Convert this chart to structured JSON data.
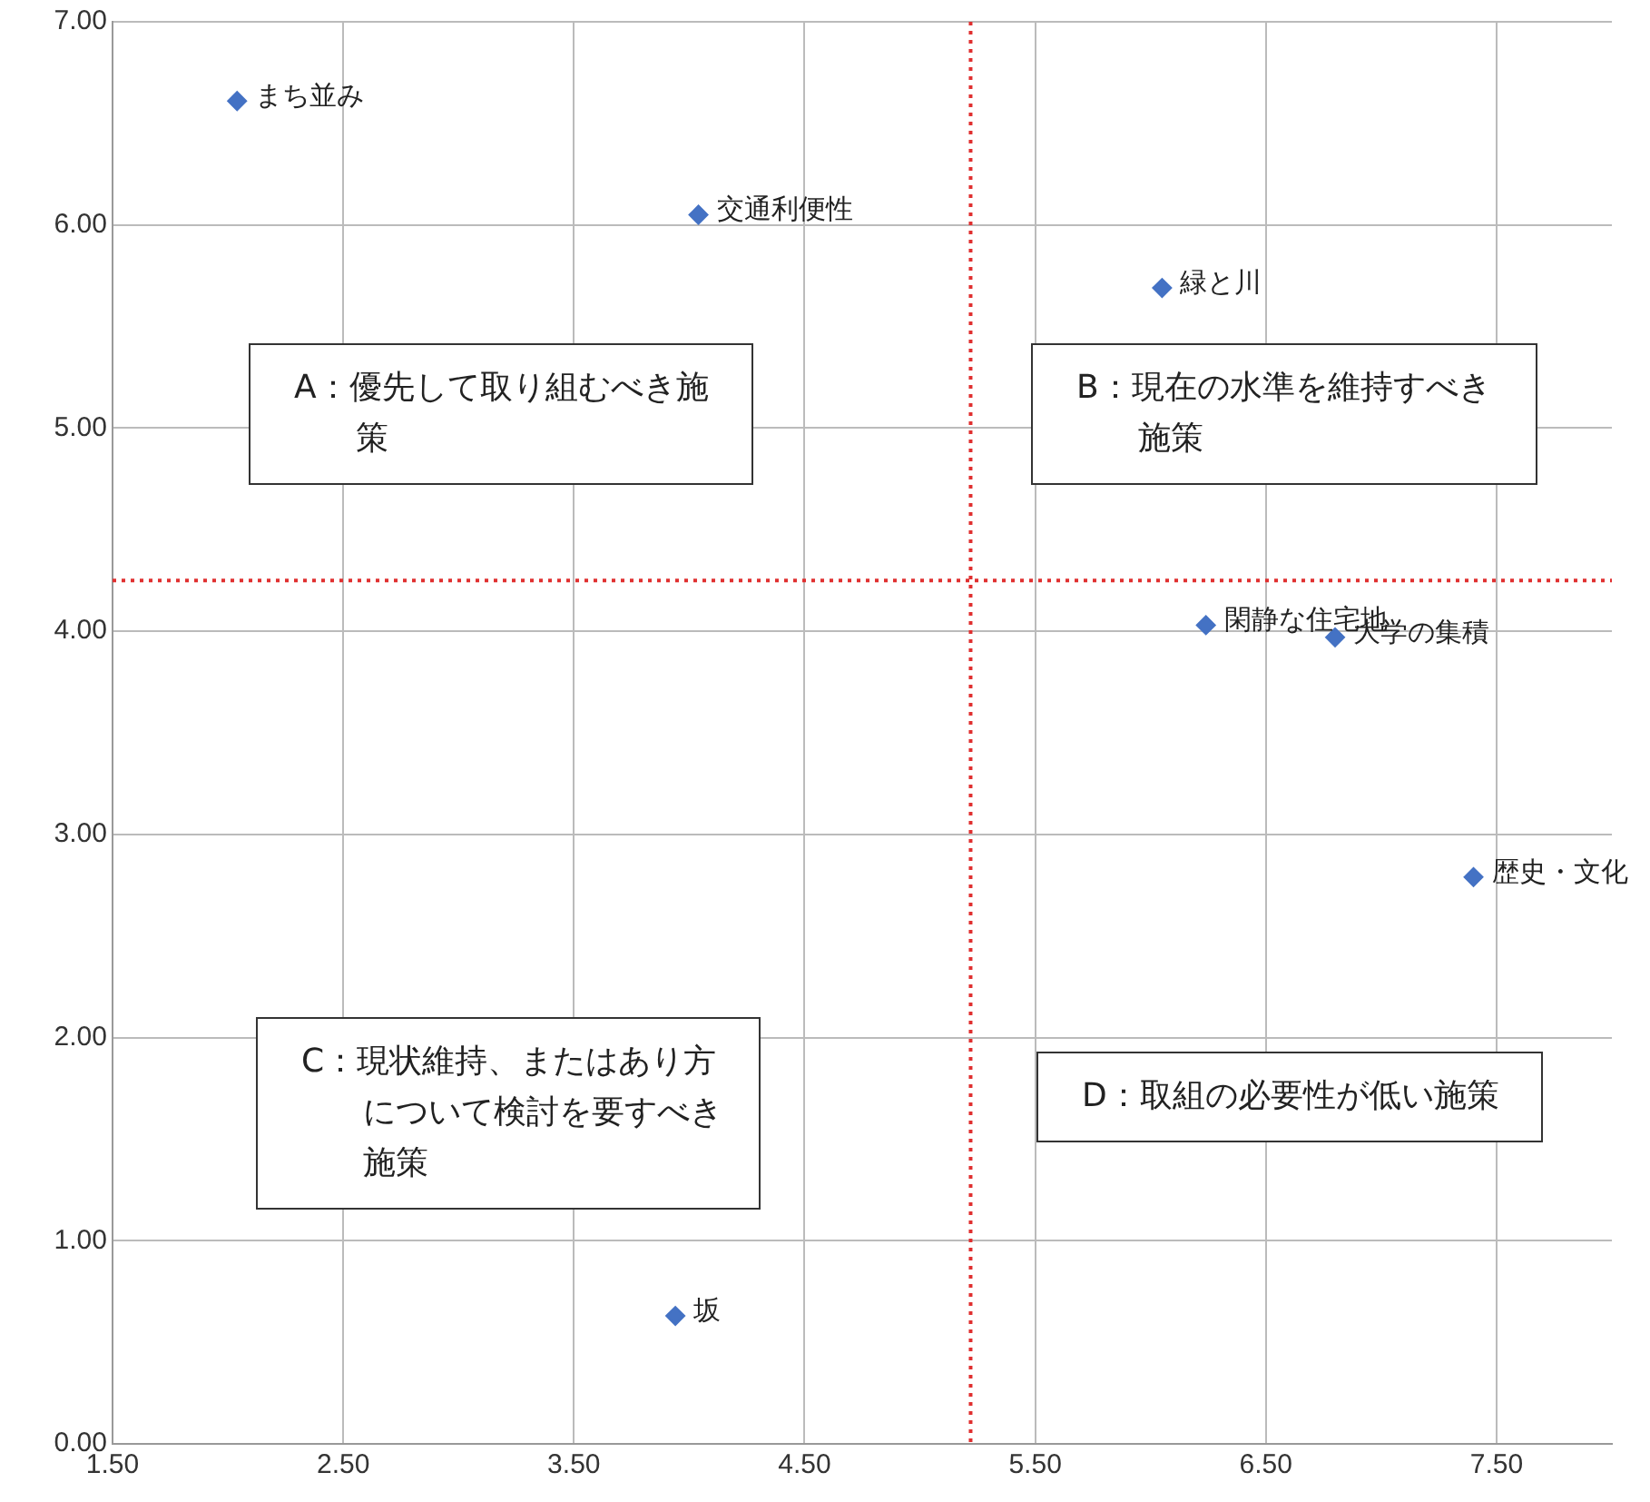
{
  "chart_data": {
    "type": "scatter",
    "series": [
      {
        "name": "まち並み",
        "color": "#4472c4",
        "x": [
          2.04
        ],
        "values": [
          6.61
        ]
      },
      {
        "name": "交通利便性",
        "color": "#4472c4",
        "x": [
          4.04
        ],
        "values": [
          6.05
        ]
      },
      {
        "name": "緑と川",
        "color": "#4472c4",
        "x": [
          6.05
        ],
        "values": [
          5.69
        ]
      },
      {
        "name": "閑静な住宅地",
        "color": "#4472c4",
        "x": [
          6.24
        ],
        "values": [
          4.03
        ]
      },
      {
        "name": "大学の集積",
        "color": "#4472c4",
        "x": [
          6.8
        ],
        "values": [
          3.97
        ]
      },
      {
        "name": "歴史・文化",
        "color": "#4472c4",
        "x": [
          7.4
        ],
        "values": [
          2.79
        ]
      },
      {
        "name": "坂",
        "color": "#4472c4",
        "x": [
          3.94
        ],
        "values": [
          0.63
        ]
      }
    ],
    "xlim": [
      1.5,
      8.0
    ],
    "xticks": [
      {
        "value": 1.5,
        "label": "1.50"
      },
      {
        "value": 2.5,
        "label": "2.50"
      },
      {
        "value": 3.5,
        "label": "3.50"
      },
      {
        "value": 4.5,
        "label": "4.50"
      },
      {
        "value": 5.5,
        "label": "5.50"
      },
      {
        "value": 6.5,
        "label": "6.50"
      },
      {
        "value": 7.5,
        "label": "7.50"
      }
    ],
    "ylim": [
      0,
      7
    ],
    "yticks": [
      {
        "value": 0,
        "label": "0.00"
      },
      {
        "value": 1,
        "label": "1.00"
      },
      {
        "value": 2,
        "label": "2.00"
      },
      {
        "value": 3,
        "label": "3.00"
      },
      {
        "value": 4,
        "label": "4.00"
      },
      {
        "value": 5,
        "label": "5.00"
      },
      {
        "value": 6,
        "label": "6.00"
      },
      {
        "value": 7,
        "label": "7.00"
      }
    ],
    "ref_lines": [
      {
        "axis": "x",
        "value": 5.22,
        "color": "#e03030",
        "line_style": "dotted"
      },
      {
        "axis": "y",
        "value": 4.25,
        "color": "#e03030",
        "line_style": "dotted"
      }
    ],
    "annotations": [
      "A：優先して取り組むべき施策",
      "B：現在の水準を維持すべき施策",
      "C：現状維持、またはあり方について検討を要すべき施策",
      "D：取組の必要性が低い施策"
    ],
    "grid": true,
    "legend": false,
    "marker": "diamond"
  }
}
